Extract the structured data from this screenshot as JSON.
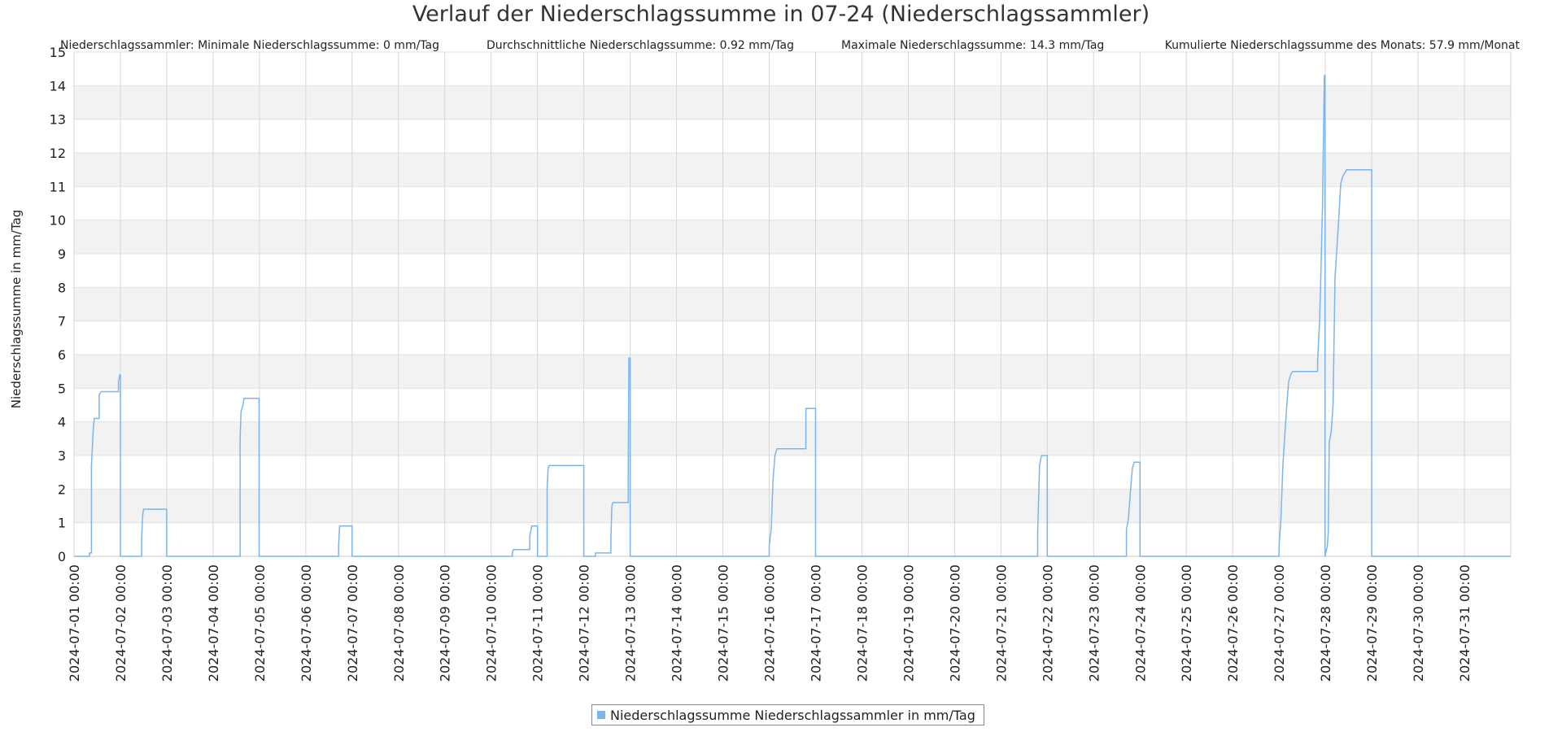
{
  "chart_data": {
    "type": "line",
    "title": "Verlauf der Niederschlagssumme in 07-24 (Niederschlagssammler)",
    "stats": [
      "Niederschlagssammler: Minimale Niederschlagssumme: 0 mm/Tag",
      "Durchschnittliche Niederschlagssumme: 0.92 mm/Tag",
      "Maximale Niederschlagssumme: 14.3 mm/Tag",
      "Kumulierte Niederschlagssumme des Monats: 57.9 mm/Monat"
    ],
    "ylabel": "Niederschlagssumme in mm/Tag",
    "xlabel": "",
    "ylim": [
      0,
      15
    ],
    "y_ticks": [
      "0",
      "1",
      "2",
      "3",
      "4",
      "5",
      "6",
      "7",
      "8",
      "9",
      "10",
      "11",
      "12",
      "13",
      "14",
      "15"
    ],
    "x_ticks": [
      "2024-07-01 00:00",
      "2024-07-02 00:00",
      "2024-07-03 00:00",
      "2024-07-04 00:00",
      "2024-07-05 00:00",
      "2024-07-06 00:00",
      "2024-07-07 00:00",
      "2024-07-08 00:00",
      "2024-07-09 00:00",
      "2024-07-10 00:00",
      "2024-07-11 00:00",
      "2024-07-12 00:00",
      "2024-07-13 00:00",
      "2024-07-14 00:00",
      "2024-07-15 00:00",
      "2024-07-16 00:00",
      "2024-07-17 00:00",
      "2024-07-18 00:00",
      "2024-07-19 00:00",
      "2024-07-20 00:00",
      "2024-07-21 00:00",
      "2024-07-22 00:00",
      "2024-07-23 00:00",
      "2024-07-24 00:00",
      "2024-07-25 00:00",
      "2024-07-26 00:00",
      "2024-07-27 00:00",
      "2024-07-28 00:00",
      "2024-07-29 00:00",
      "2024-07-30 00:00",
      "2024-07-31 00:00"
    ],
    "xlim": [
      "2024-07-01 00:00",
      "2024-08-01 00:00"
    ],
    "grid": true,
    "legend_position": "bottom-center",
    "series": [
      {
        "name": "Niederschlagssumme Niederschlagssammler in mm/Tag",
        "color": "#7cb5ec",
        "points": [
          [
            "2024-07-01 00:00",
            0
          ],
          [
            "2024-07-01 08:00",
            0
          ],
          [
            "2024-07-01 08:00",
            0.1
          ],
          [
            "2024-07-01 09:00",
            0.1
          ],
          [
            "2024-07-01 09:00",
            2.7
          ],
          [
            "2024-07-01 10:00",
            3.8
          ],
          [
            "2024-07-01 10:30",
            4.1
          ],
          [
            "2024-07-01 13:00",
            4.1
          ],
          [
            "2024-07-01 13:00",
            4.8
          ],
          [
            "2024-07-01 14:00",
            4.9
          ],
          [
            "2024-07-01 23:00",
            4.9
          ],
          [
            "2024-07-01 23:00",
            5.2
          ],
          [
            "2024-07-01 23:40",
            5.4
          ],
          [
            "2024-07-02 00:00",
            5.4
          ],
          [
            "2024-07-02 00:00",
            0
          ],
          [
            "2024-07-02 11:00",
            0
          ],
          [
            "2024-07-02 11:00",
            0.5
          ],
          [
            "2024-07-02 11:30",
            1.2
          ],
          [
            "2024-07-02 12:00",
            1.4
          ],
          [
            "2024-07-03 00:00",
            1.4
          ],
          [
            "2024-07-03 00:00",
            0
          ],
          [
            "2024-07-04 14:00",
            0
          ],
          [
            "2024-07-04 14:00",
            3.5
          ],
          [
            "2024-07-04 14:30",
            4.3
          ],
          [
            "2024-07-04 15:30",
            4.5
          ],
          [
            "2024-07-04 16:00",
            4.7
          ],
          [
            "2024-07-04 23:50",
            4.7
          ],
          [
            "2024-07-04 23:50",
            0
          ],
          [
            "2024-07-06 17:00",
            0
          ],
          [
            "2024-07-06 17:00",
            0.3
          ],
          [
            "2024-07-06 17:30",
            0.9
          ],
          [
            "2024-07-07 00:00",
            0.9
          ],
          [
            "2024-07-07 00:00",
            0
          ],
          [
            "2024-07-10 11:00",
            0
          ],
          [
            "2024-07-10 11:00",
            0.1
          ],
          [
            "2024-07-10 11:30",
            0.2
          ],
          [
            "2024-07-10 20:00",
            0.2
          ],
          [
            "2024-07-10 20:00",
            0.6
          ],
          [
            "2024-07-10 21:00",
            0.9
          ],
          [
            "2024-07-11 00:00",
            0.9
          ],
          [
            "2024-07-11 00:00",
            0
          ],
          [
            "2024-07-11 05:00",
            0
          ],
          [
            "2024-07-11 05:00",
            2.0
          ],
          [
            "2024-07-11 05:30",
            2.6
          ],
          [
            "2024-07-11 06:00",
            2.7
          ],
          [
            "2024-07-12 00:00",
            2.7
          ],
          [
            "2024-07-12 00:00",
            0
          ],
          [
            "2024-07-12 06:00",
            0
          ],
          [
            "2024-07-12 06:00",
            0.1
          ],
          [
            "2024-07-12 14:00",
            0.1
          ],
          [
            "2024-07-12 14:00",
            0.5
          ],
          [
            "2024-07-12 14:30",
            1.5
          ],
          [
            "2024-07-12 15:00",
            1.6
          ],
          [
            "2024-07-12 23:00",
            1.6
          ],
          [
            "2024-07-12 23:00",
            2.4
          ],
          [
            "2024-07-12 23:20",
            5.9
          ],
          [
            "2024-07-13 00:00",
            5.9
          ],
          [
            "2024-07-13 00:00",
            0
          ],
          [
            "2024-07-16 00:00",
            0
          ],
          [
            "2024-07-16 00:00",
            0.3
          ],
          [
            "2024-07-16 01:00",
            0.8
          ],
          [
            "2024-07-16 02:00",
            2.3
          ],
          [
            "2024-07-16 03:00",
            3.0
          ],
          [
            "2024-07-16 04:00",
            3.2
          ],
          [
            "2024-07-16 19:00",
            3.2
          ],
          [
            "2024-07-16 19:00",
            4.4
          ],
          [
            "2024-07-17 00:00",
            4.4
          ],
          [
            "2024-07-17 00:00",
            0
          ],
          [
            "2024-07-21 19:00",
            0
          ],
          [
            "2024-07-21 19:00",
            0.7
          ],
          [
            "2024-07-21 20:00",
            2.7
          ],
          [
            "2024-07-21 21:00",
            3.0
          ],
          [
            "2024-07-22 00:00",
            3.0
          ],
          [
            "2024-07-22 00:00",
            0
          ],
          [
            "2024-07-23 17:00",
            0
          ],
          [
            "2024-07-23 17:00",
            0.8
          ],
          [
            "2024-07-23 18:00",
            1.1
          ],
          [
            "2024-07-23 19:00",
            1.9
          ],
          [
            "2024-07-23 20:00",
            2.6
          ],
          [
            "2024-07-23 21:00",
            2.8
          ],
          [
            "2024-07-24 00:00",
            2.8
          ],
          [
            "2024-07-24 00:00",
            0
          ],
          [
            "2024-07-27 00:00",
            0
          ],
          [
            "2024-07-27 00:00",
            0.3
          ],
          [
            "2024-07-27 01:00",
            1.1
          ],
          [
            "2024-07-27 02:00",
            2.7
          ],
          [
            "2024-07-27 03:00",
            3.6
          ],
          [
            "2024-07-27 04:00",
            4.5
          ],
          [
            "2024-07-27 05:00",
            5.2
          ],
          [
            "2024-07-27 06:00",
            5.4
          ],
          [
            "2024-07-27 07:00",
            5.5
          ],
          [
            "2024-07-27 20:00",
            5.5
          ],
          [
            "2024-07-27 20:00",
            5.8
          ],
          [
            "2024-07-27 21:00",
            7.0
          ],
          [
            "2024-07-27 21:30",
            8.0
          ],
          [
            "2024-07-27 22:00",
            9.2
          ],
          [
            "2024-07-27 22:30",
            10.4
          ],
          [
            "2024-07-27 23:00",
            12.5
          ],
          [
            "2024-07-27 23:30",
            14.3
          ],
          [
            "2024-07-27 23:50",
            14.3
          ],
          [
            "2024-07-27 23:50",
            0
          ],
          [
            "2024-07-28 01:00",
            0.3
          ],
          [
            "2024-07-28 01:30",
            0.7
          ],
          [
            "2024-07-28 02:00",
            3.4
          ],
          [
            "2024-07-28 03:00",
            3.7
          ],
          [
            "2024-07-28 04:00",
            4.5
          ],
          [
            "2024-07-28 05:00",
            8.3
          ],
          [
            "2024-07-28 06:00",
            9.2
          ],
          [
            "2024-07-28 07:00",
            10.1
          ],
          [
            "2024-07-28 08:00",
            11.1
          ],
          [
            "2024-07-28 09:00",
            11.3
          ],
          [
            "2024-07-28 10:00",
            11.4
          ],
          [
            "2024-07-28 11:00",
            11.5
          ],
          [
            "2024-07-29 00:00",
            11.5
          ],
          [
            "2024-07-29 00:00",
            0
          ],
          [
            "2024-08-01 00:00",
            0
          ]
        ]
      }
    ]
  }
}
